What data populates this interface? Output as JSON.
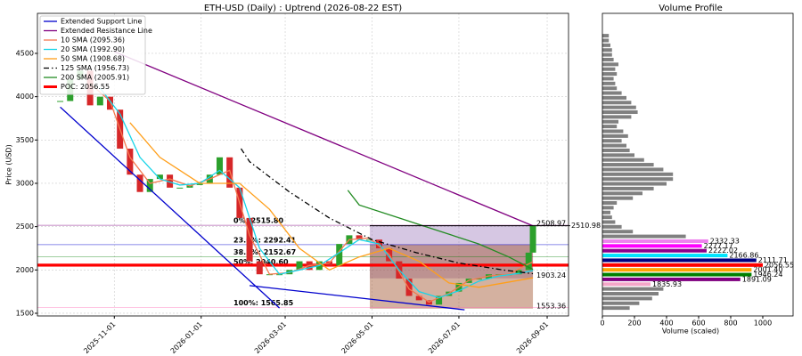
{
  "chart_data": [
    {
      "type": "candlestick",
      "title": "ETH-USD (Daily) : Uptrend (2026-08-22 EST)",
      "ylabel": "Price (USD)",
      "x": [
        "2025-09-24",
        "2025-10-01",
        "2025-10-08",
        "2025-10-15",
        "2025-10-22",
        "2025-10-29",
        "2025-11-05",
        "2025-11-12",
        "2025-11-19",
        "2025-11-26",
        "2025-12-03",
        "2025-12-10",
        "2025-12-17",
        "2025-12-24",
        "2025-12-31",
        "2026-01-07",
        "2026-01-14",
        "2026-01-21",
        "2026-01-28",
        "2026-02-04",
        "2026-02-11",
        "2026-02-18",
        "2026-02-25",
        "2026-03-04",
        "2026-03-11",
        "2026-03-18",
        "2026-03-25",
        "2026-04-01",
        "2026-04-08",
        "2026-04-15",
        "2026-04-22",
        "2026-04-29",
        "2026-05-06",
        "2026-05-13",
        "2026-05-20",
        "2026-05-27",
        "2026-06-03",
        "2026-06-10",
        "2026-06-17",
        "2026-06-24",
        "2026-07-01",
        "2026-07-08",
        "2026-07-15",
        "2026-07-22",
        "2026-07-29",
        "2026-08-05",
        "2026-08-12",
        "2026-08-19",
        "2026-08-22"
      ],
      "values": [
        3950,
        4200,
        4300,
        3900,
        4000,
        3850,
        3400,
        3100,
        2900,
        3050,
        3100,
        2950,
        2950,
        2980,
        3000,
        3100,
        3300,
        2950,
        2600,
        2100,
        1950,
        1950,
        1950,
        2000,
        2100,
        2000,
        2100,
        2050,
        2300,
        2400,
        2350,
        2350,
        2250,
        2100,
        1900,
        1700,
        1650,
        1600,
        1700,
        1750,
        1850,
        1900,
        1900,
        1950,
        1950,
        1950,
        2000,
        2200,
        2510.98
      ],
      "up_color": "#2ca02c",
      "down_color": "#d62728",
      "xlim": [
        "2025-09-08",
        "2026-09-16"
      ],
      "xticks": [
        "2025-11-01",
        "2026-01-01",
        "2026-03-01",
        "2026-05-01",
        "2026-07-01",
        "2026-09-01"
      ],
      "ylim": [
        1469,
        4962
      ],
      "yticks": [
        1500,
        2000,
        2500,
        3000,
        3500,
        4000,
        4500
      ],
      "grid": true,
      "legend": "upper left",
      "series": [
        {
          "name": "Extended Support Line",
          "color": "#0000cd",
          "x": [
            "2025-09-24",
            "2026-02-25",
            "2026-02-26",
            "2026-02-04",
            "2026-07-05"
          ],
          "values": [
            3880,
            1560,
            null,
            1820,
            1540
          ]
        },
        {
          "name": "Extended Resistance Line",
          "color": "#800080",
          "x": [
            "2025-11-01",
            "2026-08-22"
          ],
          "values": [
            4520,
            2508.97
          ]
        },
        {
          "name": "10 SMA (2095.36)",
          "color": "#f47a50",
          "x": [
            "2025-10-15",
            "2025-10-29",
            "2025-11-12",
            "2025-11-26",
            "2025-12-10",
            "2025-12-24",
            "2026-01-07",
            "2026-01-21",
            "2026-02-04",
            "2026-02-18",
            "2026-03-04",
            "2026-03-18",
            "2026-04-01",
            "2026-04-15",
            "2026-04-29",
            "2026-05-13",
            "2026-05-27",
            "2026-06-10",
            "2026-06-24",
            "2026-07-08",
            "2026-07-22",
            "2026-08-05",
            "2026-08-22"
          ],
          "values": [
            4150,
            3950,
            3300,
            3000,
            3050,
            2970,
            3050,
            3150,
            2400,
            1950,
            1970,
            2050,
            2080,
            2350,
            2370,
            2180,
            1780,
            1630,
            1730,
            1880,
            1930,
            1950,
            2095.36
          ]
        },
        {
          "name": "20 SMA (1992.90)",
          "color": "#17d4e8",
          "x": [
            "2025-10-22",
            "2025-11-05",
            "2025-11-19",
            "2025-12-03",
            "2025-12-17",
            "2025-12-31",
            "2026-01-14",
            "2026-01-28",
            "2026-02-11",
            "2026-02-25",
            "2026-03-11",
            "2026-03-25",
            "2026-04-08",
            "2026-04-22",
            "2026-05-06",
            "2026-05-20",
            "2026-06-03",
            "2026-06-17",
            "2026-07-01",
            "2026-07-15",
            "2026-07-29",
            "2026-08-12",
            "2026-08-22"
          ],
          "values": [
            4100,
            3800,
            3300,
            3050,
            2980,
            3000,
            3150,
            2950,
            2250,
            1950,
            2000,
            2050,
            2200,
            2350,
            2300,
            2000,
            1750,
            1680,
            1760,
            1870,
            1930,
            1960,
            1992.9
          ]
        },
        {
          "name": "50 SMA (1908.68)",
          "color": "#ff9f1a",
          "x": [
            "2025-11-12",
            "2025-12-03",
            "2025-12-31",
            "2026-01-28",
            "2026-02-18",
            "2026-03-11",
            "2026-04-01",
            "2026-04-22",
            "2026-05-13",
            "2026-06-03",
            "2026-06-24",
            "2026-07-15",
            "2026-08-05",
            "2026-08-22"
          ],
          "values": [
            3700,
            3300,
            3000,
            3000,
            2700,
            2250,
            2000,
            2150,
            2250,
            2100,
            1850,
            1800,
            1860,
            1908.68
          ]
        },
        {
          "name": "125 SMA (1956.73)",
          "color": "#000000",
          "linestyle": "dashdot",
          "x": [
            "2026-01-29",
            "2026-02-04",
            "2026-03-04",
            "2026-04-01",
            "2026-05-01",
            "2026-06-01",
            "2026-07-01",
            "2026-08-01",
            "2026-08-22"
          ],
          "values": [
            3400,
            3250,
            2900,
            2600,
            2350,
            2200,
            2080,
            2000,
            1956.73
          ]
        },
        {
          "name": "200 SMA (2005.91)",
          "color": "#228b22",
          "x": [
            "2026-04-14",
            "2026-04-22",
            "2026-05-20",
            "2026-06-17",
            "2026-07-15",
            "2026-08-05",
            "2026-08-22"
          ],
          "values": [
            2920,
            2750,
            2600,
            2450,
            2300,
            2150,
            2005.91
          ]
        }
      ],
      "poc": {
        "name": "POC: 2056.55",
        "color": "#ff0000",
        "level": 2056.55
      },
      "fib_levels": [
        {
          "label": "0%: 2515.80",
          "value": 2515.8,
          "color": "#800080"
        },
        {
          "label": "23.6%: 2292.41",
          "value": 2292.41,
          "color": "#0000cd"
        },
        {
          "label": "38.2%: 2152.67",
          "value": 2152.67,
          "color": "#008000"
        },
        {
          "label": "50%: 2040.60",
          "value": 2040.6,
          "color": "#ff0000"
        },
        {
          "label": "100%: 1565.85",
          "value": 1565.85,
          "color": "#ff69b4"
        }
      ],
      "annotations": [
        {
          "text": "2510.98",
          "value": 2510.98,
          "color": "#000000"
        },
        {
          "text": "2508.97",
          "value": 2508.97,
          "color": "#800080"
        },
        {
          "text": "1903.24",
          "value": 1903.24,
          "color": "#0000cd"
        },
        {
          "text": "1553.36",
          "value": 1553.36,
          "color": "#0000cd"
        }
      ]
    },
    {
      "type": "barh",
      "title": "Volume Profile",
      "xlabel": "Volume (scaled)",
      "y": [
        1560.2,
        1615.35,
        1670.5,
        1725.65,
        1780.8,
        1835.93,
        1891.09,
        1946.24,
        2001.4,
        2056.55,
        2111.71,
        2166.86,
        2222.02,
        2277.17,
        2332.33,
        2387.48,
        2442.64,
        2497.79,
        2552.95,
        2608.1,
        2663.26,
        2718.41,
        2773.57,
        2828.72,
        2883.88,
        2939.03,
        2994.19,
        3049.34,
        3104.5,
        3159.65,
        3214.81,
        3269.96,
        3325.12,
        3380.27,
        3435.43,
        3490.58,
        3545.74,
        3600.89,
        3656.05,
        3711.2,
        3766.36,
        3821.51,
        3876.67,
        3931.82,
        3986.98,
        4042.13,
        4097.29,
        4152.44,
        4207.6,
        4262.75,
        4317.91,
        4373.06,
        4428.22,
        4483.37,
        4538.53,
        4593.68,
        4648.84,
        4703.99
      ],
      "values": [
        170,
        230,
        310,
        350,
        380,
        300,
        860,
        930,
        930,
        1000,
        960,
        780,
        650,
        620,
        660,
        520,
        190,
        120,
        80,
        60,
        50,
        70,
        90,
        190,
        250,
        320,
        400,
        440,
        440,
        380,
        320,
        260,
        200,
        170,
        150,
        120,
        160,
        130,
        90,
        100,
        180,
        220,
        210,
        180,
        150,
        120,
        90,
        80,
        70,
        90,
        80,
        100,
        70,
        60,
        60,
        50,
        40,
        40
      ],
      "labels": [
        null,
        null,
        null,
        null,
        null,
        "1835.93",
        "1891.09",
        "1946.24",
        "2001.40",
        "2056.55",
        "2111.71",
        "2166.86",
        "2222.02",
        "2277.17",
        "2332.33",
        null,
        null,
        null,
        null,
        null,
        null,
        null,
        null,
        null,
        null,
        null,
        null,
        null,
        null,
        null,
        null,
        null,
        null,
        null,
        null,
        null,
        null,
        null,
        null,
        null,
        null,
        null,
        null,
        null,
        null,
        null,
        null,
        null,
        null,
        null,
        null,
        null,
        null,
        null,
        null,
        null,
        null,
        null
      ],
      "colors": [
        "#808080",
        "#808080",
        "#808080",
        "#808080",
        "#808080",
        "#f4a6c8",
        "#800080",
        "#008000",
        "#ffa500",
        "#ff0000",
        "#000080",
        "#00e5ff",
        "#8b008b",
        "#ff00ff",
        "#ee82ee",
        "#808080",
        "#808080",
        "#808080",
        "#808080",
        "#808080",
        "#808080",
        "#808080",
        "#808080",
        "#808080",
        "#808080",
        "#808080",
        "#808080",
        "#808080",
        "#808080",
        "#808080",
        "#808080",
        "#808080",
        "#808080",
        "#808080",
        "#808080",
        "#808080",
        "#808080",
        "#808080",
        "#808080",
        "#808080",
        "#808080",
        "#808080",
        "#808080",
        "#808080",
        "#808080",
        "#808080",
        "#808080",
        "#808080",
        "#808080",
        "#808080",
        "#808080",
        "#808080",
        "#808080",
        "#808080",
        "#808080",
        "#808080",
        "#808080",
        "#808080"
      ],
      "xlim": [
        0,
        1189
      ],
      "xticks": [
        0,
        200,
        400,
        600,
        800,
        1000
      ]
    }
  ]
}
